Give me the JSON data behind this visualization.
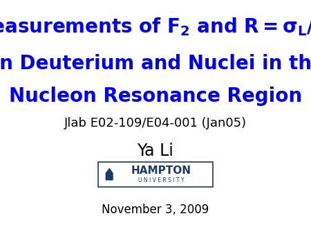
{
  "background_color": "#ffffff",
  "title_color": "#0000ff",
  "subtitle": "Jlab E02-109/E04-001 (Jan05)",
  "subtitle_color": "#000000",
  "author": "Ya Li",
  "author_color": "#000000",
  "date": "November 3, 2009",
  "date_color": "#000000",
  "title_fontsize": 20,
  "subtitle_fontsize": 13,
  "author_fontsize": 17,
  "date_fontsize": 12,
  "hampton_color": "#1a3a6b",
  "hampton_fontsize": 11
}
